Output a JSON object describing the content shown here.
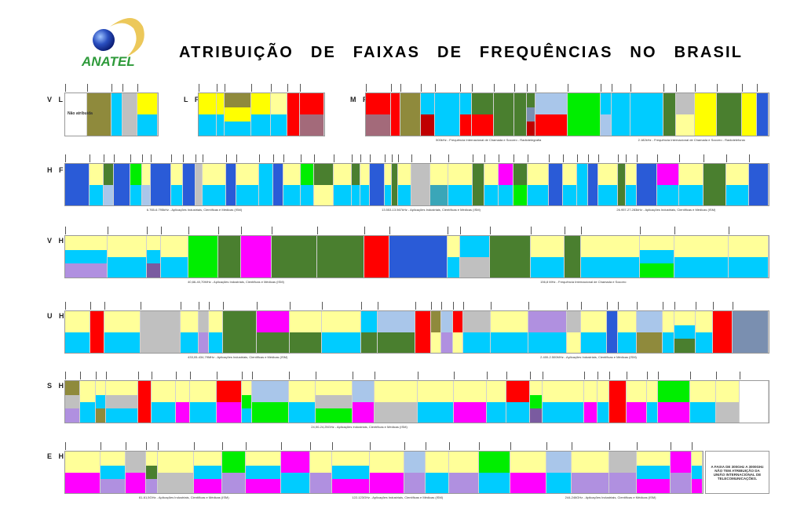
{
  "logo_text": "ANATEL",
  "title": "ATRIBUIÇÃO DE FAIXAS DE FREQUÊNCIAS NO BRASIL",
  "palette": {
    "Y": "#ffff00",
    "y": "#ffff99",
    "C": "#00ccff",
    "G": "#4a7f2f",
    "R": "#ff0000",
    "O": "#8f8a3c",
    "L": "#a9c6ea",
    "B": "#2a5bd7",
    "M": "#ff00ff",
    "P": "#b090e0",
    "S": "#c0c0c0",
    "g": "#00ee00",
    "T": "#3aa6b8",
    "D": "#c00000",
    "W": "#ffffff",
    "V": "#7a8fb0",
    "K": "#7a5ba0",
    "Q": "#a36a7a"
  },
  "bands": [
    {
      "id": "vlf",
      "label": "V L F",
      "segments": [
        "W",
        "O",
        "C",
        "S",
        "Y/C"
      ],
      "note": "Não atribuída"
    },
    {
      "id": "lf",
      "label": "L F",
      "segments": [
        "Y/C",
        "Y/C",
        "O/Y/C",
        "Y/C",
        "y/C",
        "R",
        "R/Q"
      ]
    },
    {
      "id": "mf",
      "label": "M F",
      "segments": [
        "R/Q",
        "R",
        "O",
        "C/D",
        "C",
        "C/R",
        "G/R",
        "G",
        "G",
        "G/V/D",
        "L/R",
        "g",
        "C/L",
        "C",
        "C",
        "G",
        "S/y",
        "Y",
        "G",
        "Y",
        "B"
      ]
    },
    {
      "id": "hf",
      "label": "H F",
      "segments": [
        "B",
        "y/C",
        "G/L",
        "B",
        "g/C",
        "y/L",
        "B",
        "y/C",
        "B",
        "S",
        "y/C",
        "B",
        "y/C",
        "C",
        "B",
        "y/C",
        "g/C",
        "G/y",
        "y/C",
        "G/C",
        "y/C",
        "B",
        "y/C",
        "G",
        "y/C",
        "S",
        "y/T",
        "y/C",
        "G",
        "y/C",
        "M/C",
        "G/g",
        "y/C",
        "B",
        "y/C",
        "C",
        "B",
        "y/C",
        "G",
        "y/C",
        "B",
        "M/C",
        "y/C",
        "G",
        "y/C",
        "B"
      ]
    },
    {
      "id": "vhf",
      "label": "V H F",
      "segments": [
        "y/C/P",
        "y/C",
        "y/C/K",
        "y/C",
        "g",
        "G",
        "M",
        "G",
        "G",
        "R",
        "B",
        "y/C",
        "C/S",
        "G",
        "y/C",
        "G",
        "y/C",
        "y/C/g",
        "y/C",
        "y/C"
      ]
    },
    {
      "id": "uhf",
      "label": "U H F",
      "segments": [
        "y/C",
        "R",
        "y/C",
        "S",
        "y/C",
        "S/P",
        "y/C",
        "G",
        "M/G",
        "y/G",
        "y/C",
        "C/G",
        "L/G",
        "R",
        "O/y",
        "L/P",
        "R/y",
        "S/C",
        "y/C",
        "P/C",
        "S/y",
        "y/C",
        "B",
        "y/C",
        "L/O",
        "y/C",
        "y/C/G",
        "y/C",
        "R",
        "V"
      ]
    },
    {
      "id": "shf",
      "label": "S H F",
      "segments": [
        "O/S/P",
        "y/C",
        "y/C/O",
        "y/S/C",
        "R",
        "y/C",
        "y/M",
        "y/C",
        "R/M",
        "y/g/C",
        "L/g",
        "y/C",
        "y/S/g",
        "L/M",
        "y/S",
        "y/C",
        "y/M",
        "y/C",
        "R/C",
        "y/g/K",
        "y/C",
        "y/M",
        "y/C",
        "R",
        "y/M",
        "y/C",
        "g/M",
        "y/C",
        "y/S",
        "W"
      ]
    },
    {
      "id": "ehf",
      "label": "E H F",
      "segments": [
        "y/M",
        "y/C/P",
        "S/M",
        "y/G/P",
        "y/S",
        "y/C/M",
        "g/P",
        "y/C/M",
        "M/C",
        "y/P",
        "y/C/M",
        "y/M",
        "L/P",
        "y/C",
        "y/P",
        "g/C",
        "y/M",
        "L/C",
        "y/P",
        "S/P",
        "y/C/M",
        "M/P",
        "y/C/M"
      ]
    }
  ],
  "captions": [
    {
      "band": "mf",
      "text": "500kHz - Frequência Internacional de Chamada e Socorro - Radiotelegrafia"
    },
    {
      "band": "mf",
      "text": "2.182kHz - Frequência Internacional de Chamada e Socorro - Radiotelefonia"
    },
    {
      "band": "hf",
      "text": "6.765-6.795kHz - Aplicações Industriais, Científicas e Médicas (ISM)"
    },
    {
      "band": "hf",
      "text": "13.553-13.567kHz - Aplicações Industriais, Científicas e Médicas (ISM)"
    },
    {
      "band": "hf",
      "text": "26.957-27.283kHz - Aplicações Industriais, Científicas e Médicas (ISM)"
    },
    {
      "band": "vhf",
      "text": "40,66-40,70MHz - Aplicações Industriais, Científicas e Médicas (ISM)"
    },
    {
      "band": "vhf",
      "text": "156,8 MHz - Frequência Internacional de Chamada e Socorro"
    },
    {
      "band": "uhf",
      "text": "433,05-434,79MHz - Aplicações Industriais, Científicas e Médicas (ISM)"
    },
    {
      "band": "uhf",
      "text": "2.400-2.500MHz - Aplicações Industriais, Científicas e Médicas (ISM)"
    },
    {
      "band": "shf",
      "text": "24,00-24,25GHz - Aplicações Industriais, Científicas e Médicas (ISM)"
    },
    {
      "band": "ehf",
      "text": "61-61,5GHz - Aplicações Industriais, Científicas e Médicas (ISM)"
    },
    {
      "band": "ehf",
      "text": "122-123GHz - Aplicações Industriais, Científicas e Médicas (ISM)"
    },
    {
      "band": "ehf",
      "text": "244-246GHz - Aplicações Industriais, Científicas e Médicas (ISM)"
    }
  ],
  "ehf_note": "A FAIXA DE 300GHz A 3000GHz NÃO TEM ATRIBUIÇÃO DA UNIÃO INTERNACIONAL DE TELECOMUNICAÇÕES."
}
